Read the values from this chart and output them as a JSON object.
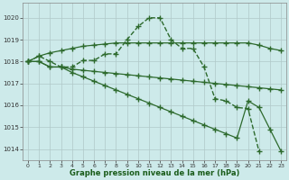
{
  "background_color": "#cdeaea",
  "line_color": "#2d6a2d",
  "xlabel": "Graphe pression niveau de la mer (hPa)",
  "xlim": [
    -0.5,
    23.5
  ],
  "ylim": [
    1013.5,
    1020.7
  ],
  "yticks": [
    1014,
    1015,
    1016,
    1017,
    1018,
    1019,
    1020
  ],
  "xticks": [
    0,
    1,
    2,
    3,
    4,
    5,
    6,
    7,
    8,
    9,
    10,
    11,
    12,
    13,
    14,
    15,
    16,
    17,
    18,
    19,
    20,
    21,
    22,
    23
  ],
  "series": [
    {
      "x": [
        0,
        1,
        2,
        3,
        4,
        5,
        6,
        7,
        8,
        9,
        10,
        11,
        12,
        13,
        14,
        15,
        16,
        17,
        18,
        19,
        20,
        21,
        22,
        23
      ],
      "y": [
        1018.0,
        1018.25,
        1018.0,
        1017.75,
        1017.75,
        1018.05,
        1018.05,
        1018.35,
        1018.35,
        1019.0,
        1019.6,
        1020.0,
        1020.0,
        1019.0,
        1018.6,
        1018.6,
        1017.75,
        1016.3,
        1016.2,
        1015.9,
        1015.85,
        1013.9,
        null,
        null
      ],
      "marker": "+",
      "markersize": 5,
      "linewidth": 1.0,
      "linestyle": "--"
    },
    {
      "x": [
        0,
        1,
        2,
        3,
        4,
        5,
        6,
        7,
        8,
        9,
        10,
        11,
        12,
        13,
        14,
        15,
        16,
        17,
        18,
        19,
        20,
        21,
        22,
        23
      ],
      "y": [
        1018.0,
        1018.25,
        1018.4,
        1018.5,
        1018.6,
        1018.7,
        1018.75,
        1018.8,
        1018.85,
        1018.85,
        1018.85,
        1018.85,
        1018.85,
        1018.85,
        1018.85,
        1018.85,
        1018.85,
        1018.85,
        1018.85,
        1018.85,
        1018.85,
        1018.75,
        1018.6,
        1018.5
      ],
      "marker": "+",
      "markersize": 4,
      "linewidth": 0.9,
      "linestyle": "-"
    },
    {
      "x": [
        0,
        1,
        2,
        3,
        4,
        5,
        6,
        7,
        8,
        9,
        10,
        11,
        12,
        13,
        14,
        15,
        16,
        17,
        18,
        19,
        20,
        21,
        22,
        23
      ],
      "y": [
        1018.0,
        1018.0,
        1017.75,
        1017.75,
        1017.65,
        1017.6,
        1017.55,
        1017.5,
        1017.45,
        1017.4,
        1017.35,
        1017.3,
        1017.25,
        1017.2,
        1017.15,
        1017.1,
        1017.05,
        1017.0,
        1016.95,
        1016.9,
        1016.85,
        1016.8,
        1016.75,
        1016.7
      ],
      "marker": "+",
      "markersize": 4,
      "linewidth": 0.9,
      "linestyle": "-"
    },
    {
      "x": [
        0,
        1,
        2,
        3,
        4,
        5,
        6,
        7,
        8,
        9,
        10,
        11,
        12,
        13,
        14,
        15,
        16,
        17,
        18,
        19,
        20,
        21,
        22,
        23
      ],
      "y": [
        1018.0,
        1018.0,
        1017.75,
        1017.75,
        1017.5,
        1017.3,
        1017.1,
        1016.9,
        1016.7,
        1016.5,
        1016.3,
        1016.1,
        1015.9,
        1015.7,
        1015.5,
        1015.3,
        1015.1,
        1014.9,
        1014.7,
        1014.5,
        1016.2,
        1015.9,
        1014.9,
        1013.9
      ],
      "marker": "+",
      "markersize": 4,
      "linewidth": 0.9,
      "linestyle": "-"
    }
  ]
}
